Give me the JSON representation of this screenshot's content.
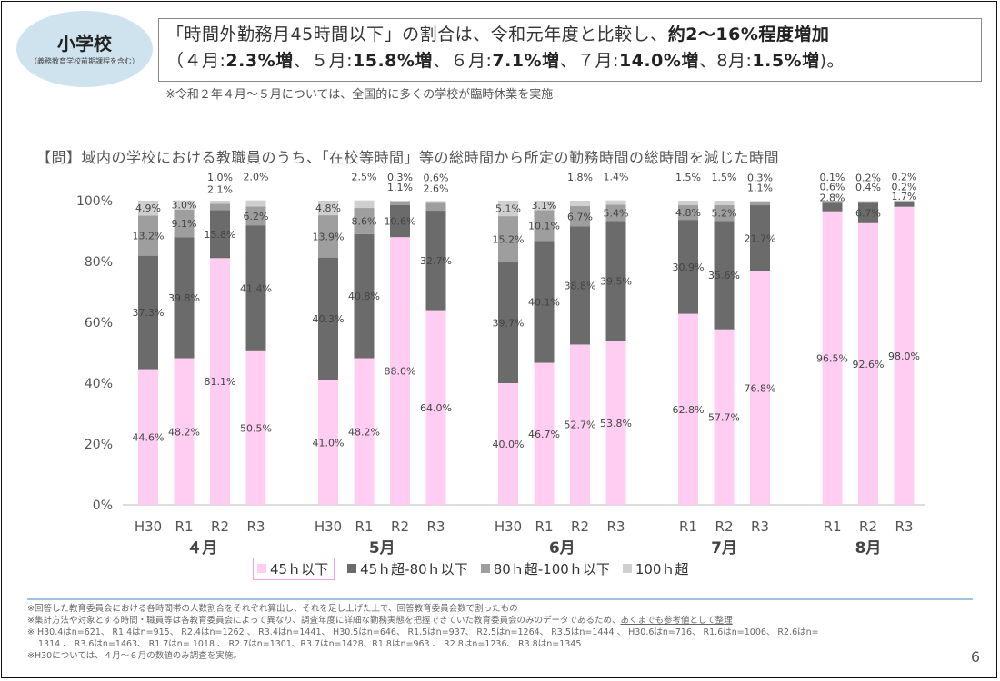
{
  "badge": {
    "title": "小学校",
    "subtitle": "（義務教育学校前期課程を含む）"
  },
  "headline": {
    "line1_prefix": "「時間外勤務月45時間以下」の割合は、令和元年度と比較し、",
    "line1_bold": "約2〜16%程度増加",
    "line2": [
      {
        "text": "（４月:",
        "bold": false
      },
      {
        "text": "2.3%増",
        "bold": true
      },
      {
        "text": "、５月:",
        "bold": false
      },
      {
        "text": "15.8%増",
        "bold": true
      },
      {
        "text": "、６月:",
        "bold": false
      },
      {
        "text": "7.1%増",
        "bold": true
      },
      {
        "text": "、７月:",
        "bold": false
      },
      {
        "text": "14.0%増",
        "bold": true
      },
      {
        "text": "、8月:",
        "bold": false
      },
      {
        "text": "1.5%増",
        "bold": true
      },
      {
        "text": ")。",
        "bold": false
      }
    ]
  },
  "note_top": "※令和２年４月〜５月については、全国的に多くの学校が臨時休業を実施",
  "question": "【問】域内の学校における教職員のうち、「在校等時間」等の総時間から所定の勤務時間の総時間を減じた時間",
  "chart_data": {
    "type": "bar",
    "stacked": true,
    "ylim": [
      0,
      100
    ],
    "yticks": [
      "0%",
      "20%",
      "40%",
      "60%",
      "80%",
      "100%"
    ],
    "grid": false,
    "legend_position": "bottom",
    "series": [
      {
        "name": "45ｈ以下",
        "color": "#ffccf2"
      },
      {
        "name": "45ｈ超-80ｈ以下",
        "color": "#6b6b6b"
      },
      {
        "name": "80ｈ超-100ｈ以下",
        "color": "#9e9e9e"
      },
      {
        "name": "100ｈ超",
        "color": "#cfcfcf"
      }
    ],
    "groups": [
      {
        "label": "４月",
        "bars": [
          {
            "label": "H30",
            "values": [
              44.6,
              37.3,
              13.2,
              4.9
            ]
          },
          {
            "label": "R1",
            "values": [
              48.2,
              39.8,
              9.1,
              3.0
            ]
          },
          {
            "label": "R2",
            "values": [
              81.1,
              15.8,
              2.1,
              1.0
            ]
          },
          {
            "label": "R3",
            "values": [
              50.5,
              41.4,
              6.2,
              2.0
            ]
          }
        ]
      },
      {
        "label": "5月",
        "bars": [
          {
            "label": "H30",
            "values": [
              41.0,
              40.3,
              13.9,
              4.8
            ]
          },
          {
            "label": "R1",
            "values": [
              48.2,
              40.8,
              8.6,
              2.5
            ]
          },
          {
            "label": "R2",
            "values": [
              88.0,
              10.6,
              1.1,
              0.3
            ]
          },
          {
            "label": "R3",
            "values": [
              64.0,
              32.7,
              2.6,
              0.6
            ]
          }
        ]
      },
      {
        "label": "6月",
        "bars": [
          {
            "label": "H30",
            "values": [
              40.0,
              39.7,
              15.2,
              5.1
            ]
          },
          {
            "label": "R1",
            "values": [
              46.7,
              40.1,
              10.1,
              3.1
            ]
          },
          {
            "label": "R2",
            "values": [
              52.7,
              38.8,
              6.7,
              1.8
            ]
          },
          {
            "label": "R3",
            "values": [
              53.8,
              39.5,
              5.4,
              1.4
            ]
          }
        ]
      },
      {
        "label": "7月",
        "bars": [
          {
            "label": "R1",
            "values": [
              62.8,
              30.9,
              4.8,
              1.5
            ]
          },
          {
            "label": "R2",
            "values": [
              57.7,
              35.6,
              5.2,
              1.5
            ]
          },
          {
            "label": "R3",
            "values": [
              76.8,
              21.7,
              1.1,
              0.3
            ]
          }
        ]
      },
      {
        "label": "8月",
        "bars": [
          {
            "label": "R1",
            "values": [
              96.5,
              2.8,
              0.6,
              0.1
            ]
          },
          {
            "label": "R2",
            "values": [
              92.6,
              6.7,
              0.4,
              0.2
            ]
          },
          {
            "label": "R3",
            "values": [
              98.0,
              1.7,
              0.2,
              0.2
            ]
          }
        ]
      }
    ]
  },
  "footnotes": {
    "line1": "※回答した教育委員会における各時間帯の人数割合をそれぞれ算出し、それを足し上げた上で、回答教育委員会数で割ったもの",
    "line2_prefix": "※集計方法や対象とする時間・職員等は各教育委員会によって異なり、調査年度に詳細な勤務実態を把握できていた教育委員会のみのデータであるため、",
    "line2_underlined": "あくまでも参考値として整理",
    "line3": "※ H30.4はn=621、 R1.4はn=915、 R2.4はn=1262 、 R3.4はn=1441、 H30.5はn=646、 R1.5はn=937、 R2.5はn=1264、 R3.5はn=1444 、 H30.6はn=716、 R1.6はn=1006、 R2.6はn=",
    "line4": "1314 、 R3.6はn=1463、 R1.7はn= 1018 、 R2.7はn=1301、R3.7はn=1428、R1.8はn=963 、 R2.8はn=1236、 R3.8はn=1345",
    "line5": "※H30については、４月〜６月の数値のみ調査を実施。"
  },
  "page_number": "6"
}
